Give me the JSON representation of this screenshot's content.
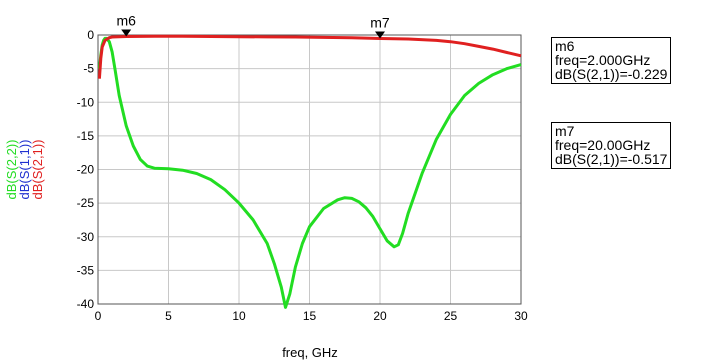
{
  "chart_data": {
    "type": "line",
    "xlabel": "freq, GHz",
    "xlim": [
      0,
      30
    ],
    "ylim": [
      -40,
      0
    ],
    "xticks": [
      0,
      5,
      10,
      15,
      20,
      25,
      30
    ],
    "yticks": [
      0,
      -5,
      -10,
      -15,
      -20,
      -25,
      -30,
      -35,
      -40
    ],
    "grid": true,
    "series": [
      {
        "name": "dB(S(2,1))",
        "color": "#e02020",
        "x": [
          0.1,
          0.2,
          0.3,
          0.5,
          0.8,
          1,
          2,
          4,
          6,
          8,
          10,
          12,
          14,
          16,
          18,
          20,
          22,
          24,
          25,
          26,
          27,
          28,
          29,
          30
        ],
        "y": [
          -6.5,
          -3.5,
          -1.8,
          -0.8,
          -0.4,
          -0.3,
          -0.229,
          -0.2,
          -0.2,
          -0.22,
          -0.25,
          -0.28,
          -0.3,
          -0.35,
          -0.42,
          -0.517,
          -0.6,
          -0.8,
          -1.0,
          -1.3,
          -1.7,
          -2.1,
          -2.6,
          -3.1
        ]
      },
      {
        "name": "dB(S(1,1))",
        "color": "#2030d0",
        "x": [],
        "y": []
      },
      {
        "name": "dB(S(2,2))",
        "color": "#22dd22",
        "x": [
          0.1,
          0.2,
          0.3,
          0.4,
          0.5,
          0.6,
          0.8,
          1,
          1.2,
          1.5,
          2,
          2.5,
          3,
          3.5,
          4,
          5,
          6,
          7,
          8,
          9,
          10,
          11,
          12,
          12.5,
          13,
          13.3,
          13.6,
          14,
          14.5,
          15,
          16,
          17,
          17.5,
          18,
          18.5,
          19,
          19.5,
          20,
          20.5,
          21,
          21.3,
          21.6,
          22,
          23,
          24,
          25,
          26,
          27,
          28,
          29,
          30
        ],
        "y": [
          -5,
          -3,
          -1.5,
          -0.8,
          -0.5,
          -0.5,
          -1,
          -2.5,
          -5,
          -9,
          -13.5,
          -16.5,
          -18.5,
          -19.5,
          -19.8,
          -19.9,
          -20.1,
          -20.6,
          -21.5,
          -23,
          -25,
          -27.5,
          -31,
          -34,
          -37.5,
          -40.5,
          -38.5,
          -34.5,
          -31,
          -28.5,
          -25.8,
          -24.5,
          -24.2,
          -24.3,
          -24.8,
          -25.7,
          -27,
          -28.8,
          -30.6,
          -31.5,
          -31.2,
          -29.5,
          -26.5,
          -20.5,
          -15.5,
          -11.8,
          -9,
          -7.2,
          -5.9,
          -5,
          -4.4
        ]
      }
    ],
    "markers": [
      {
        "name": "m6",
        "x": 2.0,
        "y": -0.229,
        "freq_text": "freq=2.000GHz",
        "value_text": "dB(S(2,1))=-0.229"
      },
      {
        "name": "m7",
        "x": 20.0,
        "y": -0.517,
        "freq_text": "freq=20.00GHz",
        "value_text": "dB(S(2,1))=-0.517"
      }
    ]
  }
}
